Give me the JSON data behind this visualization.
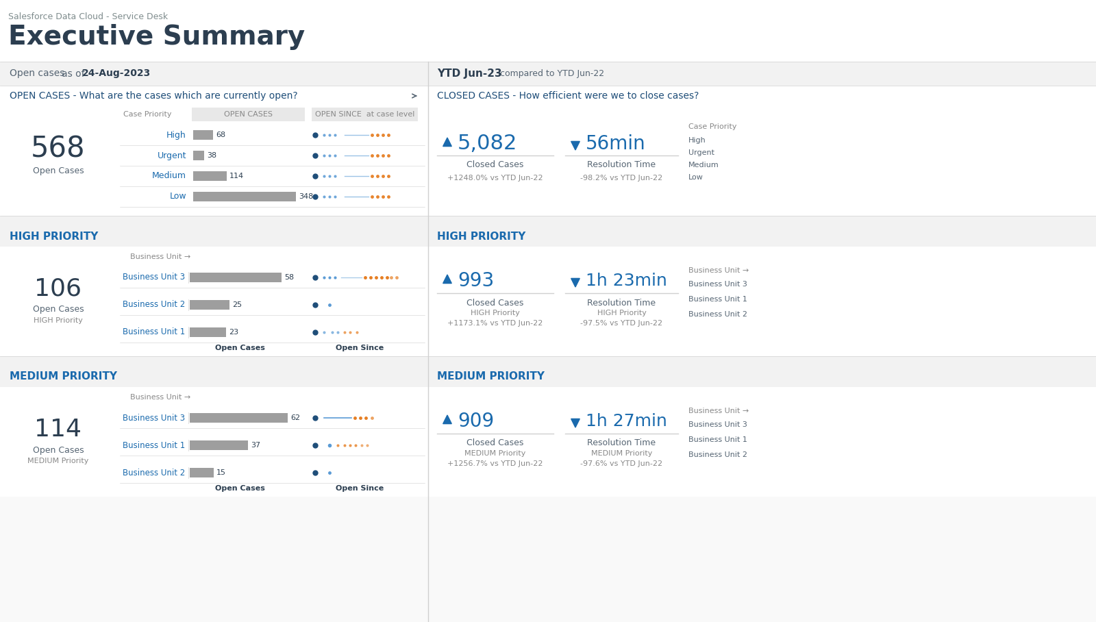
{
  "title": "Executive Summary",
  "subtitle": "Salesforce Data Cloud - Service Desk",
  "bg_color": "#ffffff",
  "left_date_label": "Open cases",
  "left_date_of": "as of",
  "left_date": "24-Aug-2023",
  "right_date_label": "YTD Jun-23",
  "right_date_compared": "compared to YTD Jun-22",
  "open_section_title": "OPEN CASES - What are the cases which are currently open?",
  "closed_section_title": "CLOSED CASES - How efficient were we to close cases?",
  "open_total": "568",
  "open_total_label": "Open Cases",
  "open_priorities": [
    "High",
    "Urgent",
    "Medium",
    "Low"
  ],
  "open_values": [
    68,
    38,
    114,
    348
  ],
  "case_priority_label": "Case Priority",
  "open_cases_col": "OPEN CASES",
  "open_since_col": "OPEN SINCE  at case level",
  "high_priority_title": "HIGH PRIORITY",
  "high_open_total": "106",
  "high_open_label": "Open Cases",
  "high_open_sub": "HIGH Priority",
  "high_bus_units": [
    "Business Unit 3",
    "Business Unit 2",
    "Business Unit 1"
  ],
  "high_bus_values": [
    58,
    25,
    23
  ],
  "medium_priority_title": "MEDIUM PRIORITY",
  "medium_open_total": "114",
  "medium_open_label": "Open Cases",
  "medium_open_sub": "MEDIUM Priority",
  "medium_bus_units": [
    "Business Unit 3",
    "Business Unit 1",
    "Business Unit 2"
  ],
  "medium_bus_values": [
    62,
    37,
    15
  ],
  "closed_total": "5,082",
  "closed_label": "Closed Cases",
  "closed_vs": "+1248.0% vs YTD Jun-22",
  "resolution_time": "56min",
  "resolution_label": "Resolution Time",
  "resolution_vs": "-98.2% vs YTD Jun-22",
  "closed_high_total": "993",
  "closed_high_label": "Closed Cases",
  "closed_high_sub": "HIGH Priority",
  "closed_high_vs": "+1173.1% vs YTD Jun-22",
  "res_high_time": "1h 23min",
  "res_high_label": "Resolution Time",
  "res_high_sub": "HIGH Priority",
  "res_high_vs": "-97.5% vs YTD Jun-22",
  "closed_medium_total": "909",
  "closed_medium_label": "Closed Cases",
  "closed_medium_sub": "MEDIUM Priority",
  "closed_medium_vs": "+1256.7% vs YTD Jun-22",
  "res_medium_time": "1h 27min",
  "res_medium_label": "Resolution Time",
  "res_medium_sub": "MEDIUM Priority",
  "res_medium_vs": "-97.6% vs YTD Jun-22",
  "right_bus_units": [
    "Business Unit 3",
    "Business Unit 1",
    "Business Unit 2"
  ],
  "right_priority_items": [
    "High",
    "Urgent",
    "Medium",
    "Low"
  ],
  "section_title_color": "#1f4e79",
  "blue_dark": "#1f4e79",
  "blue_kpi": "#1a6aad",
  "blue_mid": "#5b9bd5",
  "orange": "#e67e22",
  "gray_bar": "#9e9e9e",
  "text_dark": "#2c3e50",
  "text_med": "#566573",
  "text_light": "#888888",
  "panel_gray": "#f2f2f2",
  "white": "#ffffff",
  "divider": "#d0d0d0"
}
